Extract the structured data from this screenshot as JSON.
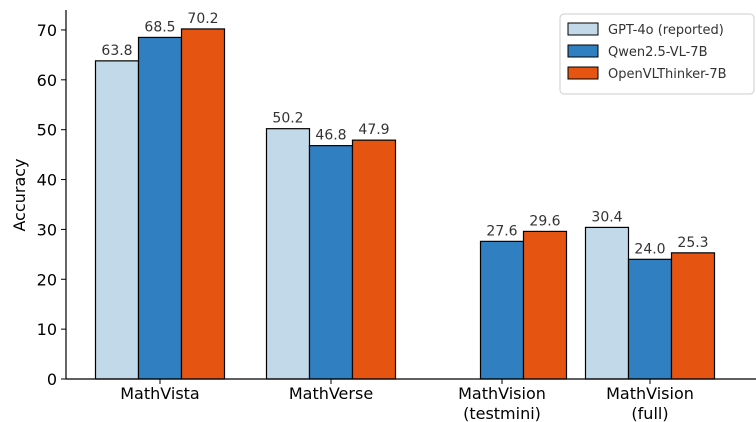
{
  "chart_data": {
    "type": "bar",
    "title": "",
    "xlabel": "",
    "ylabel": "Accuracy",
    "ylim": [
      0,
      74
    ],
    "yticks": [
      0,
      10,
      20,
      30,
      40,
      50,
      60,
      70
    ],
    "grid": false,
    "legend_position": "top-right",
    "categories": [
      [
        "MathVista"
      ],
      [
        "MathVerse"
      ],
      [
        "MathVision",
        "(testmini)"
      ],
      [
        "MathVision",
        "(full)"
      ]
    ],
    "series": [
      {
        "name": "GPT-4o (reported)",
        "color": "#c1d9e8",
        "values": [
          63.8,
          50.2,
          null,
          30.4
        ],
        "labels": [
          "63.8",
          "50.2",
          null,
          "30.4"
        ]
      },
      {
        "name": "Qwen2.5-VL-7B",
        "color": "#2f7fc1",
        "values": [
          68.5,
          46.8,
          27.6,
          24.0
        ],
        "labels": [
          "68.5",
          "46.8",
          "27.6",
          "24.0"
        ]
      },
      {
        "name": "OpenVLThinker-7B",
        "color": "#e55511",
        "values": [
          70.2,
          47.9,
          29.6,
          25.3
        ],
        "labels": [
          "70.2",
          "47.9",
          "29.6",
          "25.3"
        ]
      }
    ]
  }
}
